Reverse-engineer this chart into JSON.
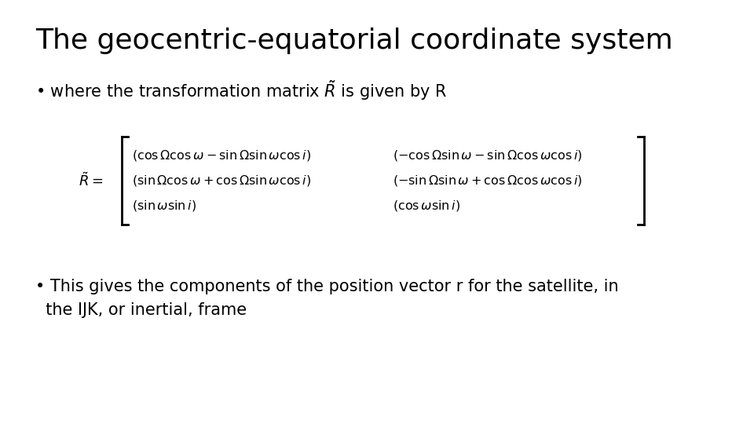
{
  "title": "The geocentric-equatorial coordinate system",
  "bullet1_text": "• where the transformation matrix $\\tilde{R}$ is given by R",
  "matrix_label": "$\\tilde{R}=$",
  "matrix_row1_col1": "$(\\cos \\Omega \\cos \\omega - \\sin \\Omega \\sin \\omega \\cos i)$",
  "matrix_row1_col2": "$(-\\cos \\Omega \\sin \\omega - \\sin \\Omega \\cos \\omega \\cos i)$",
  "matrix_row2_col1": "$(\\sin \\Omega \\cos \\omega + \\cos \\Omega \\sin \\omega \\cos i)$",
  "matrix_row2_col2": "$(-\\sin \\Omega \\sin \\omega + \\cos \\Omega \\cos \\omega \\cos i)$",
  "matrix_row3_col1": "$(\\sin \\omega \\sin i)$",
  "matrix_row3_col2": "$(\\cos \\omega \\sin i)$",
  "bullet2_line1": "• This gives the components of the position vector r for the satellite, in",
  "bullet2_line2": "  the IJK, or inertial, frame",
  "bg_color": "#ffffff",
  "text_color": "#000000",
  "title_fontsize": 26,
  "body_fontsize": 15,
  "matrix_fontsize": 11.5,
  "matrix_label_fontsize": 13
}
